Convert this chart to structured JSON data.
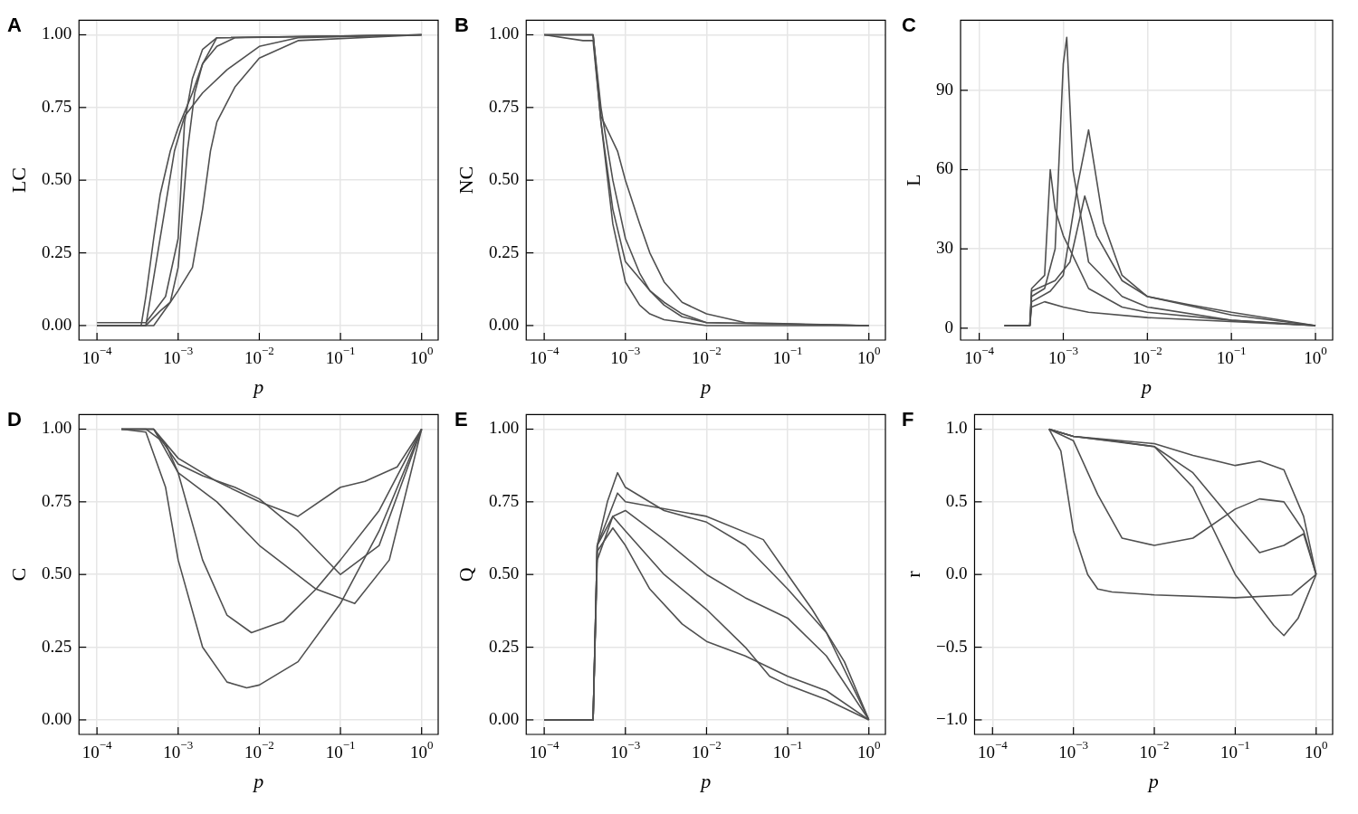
{
  "chart_data": [
    {
      "type": "line",
      "annotations": [
        "A"
      ],
      "xlabel": "p",
      "ylabel": "LC",
      "log": "x",
      "grid": true,
      "marker": "none",
      "xlim": [
        6e-05,
        1.6
      ],
      "xticks": [
        {
          "value": 0.0001,
          "label": "10$^{−4}$"
        },
        {
          "value": 0.001,
          "label": "10$^{−3}$"
        },
        {
          "value": 0.01,
          "label": "10$^{−2}$"
        },
        {
          "value": 0.1,
          "label": "10$^{−1}$"
        },
        {
          "value": 1,
          "label": "10$^{0}$"
        }
      ],
      "ylim": [
        -0.05,
        1.05
      ],
      "yticks": [
        {
          "value": 0,
          "label": "0.00"
        },
        {
          "value": 0.25,
          "label": "0.25"
        },
        {
          "value": 0.5,
          "label": "0.50"
        },
        {
          "value": 0.75,
          "label": "0.75"
        },
        {
          "value": 1,
          "label": "1.00"
        }
      ],
      "series": [
        {
          "color": "#505050",
          "x": [
            0.0001,
            0.00035,
            0.0004,
            0.0005,
            0.0006,
            0.0008,
            0.001,
            0.0015,
            0.002,
            0.003,
            1
          ],
          "values": [
            0,
            0,
            0.1,
            0.3,
            0.45,
            0.6,
            0.68,
            0.8,
            0.9,
            0.99,
            1
          ]
        },
        {
          "color": "#505050",
          "x": [
            0.0001,
            0.0004,
            0.0006,
            0.0008,
            0.001,
            0.0013,
            0.0016,
            0.002,
            0.003,
            0.005,
            1
          ],
          "values": [
            0,
            0,
            0.05,
            0.08,
            0.2,
            0.6,
            0.8,
            0.9,
            0.96,
            0.99,
            1
          ]
        },
        {
          "color": "#505050",
          "x": [
            0.0001,
            0.0005,
            0.0008,
            0.001,
            0.0015,
            0.002,
            0.0025,
            0.003,
            0.005,
            0.01,
            0.03,
            1
          ],
          "values": [
            0,
            0,
            0.08,
            0.12,
            0.2,
            0.4,
            0.6,
            0.7,
            0.82,
            0.92,
            0.98,
            1
          ]
        },
        {
          "color": "#505050",
          "x": [
            0.0001,
            0.0004,
            0.0007,
            0.001,
            0.0012,
            0.0015,
            0.002,
            0.003,
            1
          ],
          "values": [
            0.01,
            0.01,
            0.1,
            0.3,
            0.7,
            0.85,
            0.95,
            0.99,
            1
          ]
        },
        {
          "color": "#505050",
          "x": [
            0.0001,
            0.0004,
            0.0006,
            0.0009,
            0.0012,
            0.002,
            0.004,
            0.01,
            0.03,
            1
          ],
          "values": [
            0,
            0,
            0.3,
            0.6,
            0.72,
            0.8,
            0.88,
            0.96,
            0.99,
            1
          ]
        }
      ]
    },
    {
      "type": "line",
      "annotations": [
        "B"
      ],
      "xlabel": "p",
      "ylabel": "NC",
      "log": "x",
      "grid": true,
      "marker": "none",
      "xlim": [
        6e-05,
        1.6
      ],
      "xticks": [
        {
          "value": 0.0001,
          "label": "10$^{−4}$"
        },
        {
          "value": 0.001,
          "label": "10$^{−3}$"
        },
        {
          "value": 0.01,
          "label": "10$^{−2}$"
        },
        {
          "value": 0.1,
          "label": "10$^{−1}$"
        },
        {
          "value": 1,
          "label": "10$^{0}$"
        }
      ],
      "ylim": [
        -0.05,
        1.05
      ],
      "yticks": [
        {
          "value": 0,
          "label": "0.00"
        },
        {
          "value": 0.25,
          "label": "0.25"
        },
        {
          "value": 0.5,
          "label": "0.50"
        },
        {
          "value": 0.75,
          "label": "0.75"
        },
        {
          "value": 1,
          "label": "1.00"
        }
      ],
      "series": [
        {
          "color": "#505050",
          "x": [
            0.0001,
            0.0004,
            0.0005,
            0.0007,
            0.001,
            0.0015,
            0.002,
            0.003,
            0.005,
            0.01,
            1
          ],
          "values": [
            1,
            1,
            0.75,
            0.5,
            0.3,
            0.18,
            0.12,
            0.07,
            0.03,
            0.01,
            0
          ]
        },
        {
          "color": "#505050",
          "x": [
            0.0001,
            0.0003,
            0.0004,
            0.0005,
            0.0007,
            0.001,
            0.0015,
            0.002,
            0.003,
            0.01,
            1
          ],
          "values": [
            1,
            0.98,
            0.98,
            0.7,
            0.35,
            0.15,
            0.07,
            0.04,
            0.02,
            0,
            0
          ]
        },
        {
          "color": "#505050",
          "x": [
            0.0001,
            0.0004,
            0.0005,
            0.0008,
            0.001,
            0.0015,
            0.002,
            0.003,
            0.005,
            0.01,
            0.03,
            1
          ],
          "values": [
            1,
            1,
            0.72,
            0.6,
            0.5,
            0.35,
            0.25,
            0.15,
            0.08,
            0.04,
            0.01,
            0
          ]
        },
        {
          "color": "#505050",
          "x": [
            0.0001,
            0.0004,
            0.0005,
            0.0007,
            0.001,
            0.002,
            0.003,
            0.005,
            0.01,
            1
          ],
          "values": [
            1,
            1,
            0.7,
            0.4,
            0.22,
            0.12,
            0.08,
            0.04,
            0.01,
            0
          ]
        }
      ]
    },
    {
      "type": "line",
      "annotations": [
        "C"
      ],
      "xlabel": "p",
      "ylabel": "L",
      "log": "x",
      "grid": true,
      "marker": "none",
      "xlim": [
        6e-05,
        1.6
      ],
      "xticks": [
        {
          "value": 0.0001,
          "label": "10$^{−4}$"
        },
        {
          "value": 0.001,
          "label": "10$^{−3}$"
        },
        {
          "value": 0.01,
          "label": "10$^{−2}$"
        },
        {
          "value": 0.1,
          "label": "10$^{−1}$"
        },
        {
          "value": 1,
          "label": "10$^{0}$"
        }
      ],
      "ylim": [
        -4.5,
        116.5
      ],
      "yticks": [
        0,
        30,
        60,
        90
      ],
      "series": [
        {
          "color": "#505050",
          "x": [
            0.0002,
            0.0004,
            0.00042,
            0.0006,
            0.0008,
            0.001,
            0.0011,
            0.0013,
            0.002,
            0.005,
            0.01,
            0.1,
            1
          ],
          "values": [
            1,
            1,
            12,
            15,
            30,
            100,
            110,
            60,
            25,
            12,
            8,
            3,
            1
          ]
        },
        {
          "color": "#505050",
          "x": [
            0.0002,
            0.0004,
            0.00042,
            0.0007,
            0.001,
            0.0015,
            0.002,
            0.003,
            0.005,
            0.01,
            0.1,
            1
          ],
          "values": [
            1,
            1,
            10,
            14,
            20,
            55,
            75,
            40,
            20,
            12,
            5,
            1
          ]
        },
        {
          "color": "#505050",
          "x": [
            0.0002,
            0.0004,
            0.00042,
            0.0006,
            0.0007,
            0.0008,
            0.001,
            0.002,
            0.005,
            0.01,
            0.1,
            1
          ],
          "values": [
            1,
            1,
            15,
            20,
            60,
            45,
            35,
            15,
            8,
            6,
            3,
            1
          ]
        },
        {
          "color": "#505050",
          "x": [
            0.0002,
            0.0004,
            0.00042,
            0.0006,
            0.001,
            0.002,
            0.01,
            1
          ],
          "values": [
            1,
            1,
            8,
            10,
            8,
            6,
            4,
            1
          ]
        },
        {
          "color": "#505050",
          "x": [
            0.0002,
            0.0004,
            0.00042,
            0.0008,
            0.0012,
            0.0018,
            0.0025,
            0.005,
            0.01,
            0.03,
            0.1,
            1
          ],
          "values": [
            1,
            1,
            14,
            18,
            25,
            50,
            35,
            18,
            12,
            9,
            6,
            1
          ]
        }
      ]
    },
    {
      "type": "line",
      "annotations": [
        "D"
      ],
      "xlabel": "p",
      "ylabel": "C",
      "log": "x",
      "grid": true,
      "marker": "none",
      "xlim": [
        6e-05,
        1.6
      ],
      "xticks": [
        {
          "value": 0.0001,
          "label": "10$^{−4}$"
        },
        {
          "value": 0.001,
          "label": "10$^{−3}$"
        },
        {
          "value": 0.01,
          "label": "10$^{−2}$"
        },
        {
          "value": 0.1,
          "label": "10$^{−1}$"
        },
        {
          "value": 1,
          "label": "10$^{0}$"
        }
      ],
      "ylim": [
        -0.05,
        1.05
      ],
      "yticks": [
        {
          "value": 0,
          "label": "0.00"
        },
        {
          "value": 0.25,
          "label": "0.25"
        },
        {
          "value": 0.5,
          "label": "0.50"
        },
        {
          "value": 0.75,
          "label": "0.75"
        },
        {
          "value": 1,
          "label": "1.00"
        }
      ],
      "series": [
        {
          "color": "#505050",
          "x": [
            0.0002,
            0.0004,
            0.0007,
            0.001,
            0.002,
            0.004,
            0.007,
            0.01,
            0.03,
            0.1,
            0.3,
            1
          ],
          "values": [
            1,
            0.99,
            0.8,
            0.55,
            0.25,
            0.13,
            0.11,
            0.12,
            0.2,
            0.4,
            0.65,
            1
          ]
        },
        {
          "color": "#505050",
          "x": [
            0.0002,
            0.0004,
            0.0007,
            0.001,
            0.002,
            0.004,
            0.008,
            0.02,
            0.05,
            0.1,
            0.3,
            1
          ],
          "values": [
            1,
            1,
            0.95,
            0.85,
            0.55,
            0.36,
            0.3,
            0.34,
            0.45,
            0.55,
            0.72,
            1
          ]
        },
        {
          "color": "#505050",
          "x": [
            0.0002,
            0.0005,
            0.001,
            0.002,
            0.005,
            0.01,
            0.03,
            0.1,
            0.3,
            1
          ],
          "values": [
            1,
            1,
            0.88,
            0.84,
            0.8,
            0.76,
            0.65,
            0.5,
            0.6,
            1
          ]
        },
        {
          "color": "#505050",
          "x": [
            0.0002,
            0.0005,
            0.001,
            0.003,
            0.01,
            0.03,
            0.1,
            0.2,
            0.5,
            1
          ],
          "values": [
            1,
            1,
            0.9,
            0.82,
            0.75,
            0.7,
            0.8,
            0.82,
            0.87,
            1
          ]
        },
        {
          "color": "#505050",
          "x": [
            0.0002,
            0.0005,
            0.001,
            0.003,
            0.01,
            0.05,
            0.15,
            0.4,
            1
          ],
          "values": [
            1,
            1,
            0.85,
            0.75,
            0.6,
            0.45,
            0.4,
            0.55,
            1
          ]
        }
      ]
    },
    {
      "type": "line",
      "annotations": [
        "E"
      ],
      "xlabel": "p",
      "ylabel": "Q",
      "log": "x",
      "grid": true,
      "marker": "none",
      "xlim": [
        6e-05,
        1.6
      ],
      "xticks": [
        {
          "value": 0.0001,
          "label": "10$^{−4}$"
        },
        {
          "value": 0.001,
          "label": "10$^{−3}$"
        },
        {
          "value": 0.01,
          "label": "10$^{−2}$"
        },
        {
          "value": 0.1,
          "label": "10$^{−1}$"
        },
        {
          "value": 1,
          "label": "10$^{0}$"
        }
      ],
      "ylim": [
        -0.05,
        1.05
      ],
      "yticks": [
        {
          "value": 0,
          "label": "0.00"
        },
        {
          "value": 0.25,
          "label": "0.25"
        },
        {
          "value": 0.5,
          "label": "0.50"
        },
        {
          "value": 0.75,
          "label": "0.75"
        },
        {
          "value": 1,
          "label": "1.00"
        }
      ],
      "series": [
        {
          "color": "#505050",
          "x": [
            0.0001,
            0.0004,
            0.00045,
            0.0006,
            0.0008,
            0.001,
            0.003,
            0.01,
            0.03,
            0.1,
            0.3,
            1
          ],
          "values": [
            0,
            0,
            0.6,
            0.75,
            0.85,
            0.8,
            0.72,
            0.68,
            0.6,
            0.45,
            0.3,
            0
          ]
        },
        {
          "color": "#505050",
          "x": [
            0.0001,
            0.0004,
            0.00045,
            0.0007,
            0.001,
            0.003,
            0.01,
            0.03,
            0.1,
            0.3,
            1
          ],
          "values": [
            0,
            0,
            0.55,
            0.7,
            0.72,
            0.62,
            0.5,
            0.42,
            0.35,
            0.22,
            0
          ]
        },
        {
          "color": "#505050",
          "x": [
            0.0001,
            0.0004,
            0.00045,
            0.0007,
            0.001,
            0.002,
            0.005,
            0.01,
            0.03,
            0.1,
            0.3,
            1
          ],
          "values": [
            0,
            0,
            0.58,
            0.66,
            0.6,
            0.45,
            0.33,
            0.27,
            0.22,
            0.15,
            0.1,
            0
          ]
        },
        {
          "color": "#505050",
          "x": [
            0.0001,
            0.0004,
            0.00045,
            0.0007,
            0.001,
            0.003,
            0.01,
            0.03,
            0.06,
            0.1,
            0.3,
            1
          ],
          "values": [
            0,
            0,
            0.6,
            0.7,
            0.65,
            0.5,
            0.38,
            0.25,
            0.15,
            0.12,
            0.07,
            0
          ]
        },
        {
          "color": "#505050",
          "x": [
            0.0001,
            0.0004,
            0.00045,
            0.0008,
            0.001,
            0.01,
            0.05,
            0.1,
            0.2,
            0.5,
            1
          ],
          "values": [
            0,
            0,
            0.6,
            0.78,
            0.75,
            0.7,
            0.62,
            0.5,
            0.38,
            0.2,
            0
          ]
        }
      ]
    },
    {
      "type": "line",
      "annotations": [
        "F"
      ],
      "xlabel": "p",
      "ylabel": "r",
      "log": "x",
      "grid": true,
      "marker": "none",
      "xlim": [
        6e-05,
        1.6
      ],
      "xticks": [
        {
          "value": 0.0001,
          "label": "10$^{−4}$"
        },
        {
          "value": 0.001,
          "label": "10$^{−3}$"
        },
        {
          "value": 0.01,
          "label": "10$^{−2}$"
        },
        {
          "value": 0.1,
          "label": "10$^{−1}$"
        },
        {
          "value": 1,
          "label": "10$^{0}$"
        }
      ],
      "ylim": [
        -1.1,
        1.1
      ],
      "yticks": [
        {
          "value": -1,
          "label": "−1.0"
        },
        {
          "value": -0.5,
          "label": "−0.5"
        },
        {
          "value": 0,
          "label": "0.0"
        },
        {
          "value": 0.5,
          "label": "0.5"
        },
        {
          "value": 1,
          "label": "1.0"
        }
      ],
      "series": [
        {
          "color": "#505050",
          "x": [
            0.0005,
            0.0007,
            0.001,
            0.0015,
            0.002,
            0.003,
            0.01,
            0.1,
            0.5,
            1
          ],
          "values": [
            1,
            0.85,
            0.3,
            0,
            -0.1,
            -0.12,
            -0.14,
            -0.16,
            -0.14,
            0
          ]
        },
        {
          "color": "#505050",
          "x": [
            0.0005,
            0.001,
            0.002,
            0.004,
            0.01,
            0.03,
            0.1,
            0.2,
            0.4,
            0.7,
            1
          ],
          "values": [
            1,
            0.92,
            0.55,
            0.25,
            0.2,
            0.25,
            0.45,
            0.52,
            0.5,
            0.3,
            0
          ]
        },
        {
          "color": "#505050",
          "x": [
            0.0005,
            0.001,
            0.003,
            0.01,
            0.03,
            0.1,
            0.2,
            0.4,
            0.7,
            1
          ],
          "values": [
            1,
            0.95,
            0.92,
            0.88,
            0.7,
            0.35,
            0.15,
            0.2,
            0.28,
            0
          ]
        },
        {
          "color": "#505050",
          "x": [
            0.0005,
            0.001,
            0.01,
            0.03,
            0.1,
            0.2,
            0.4,
            0.7,
            1
          ],
          "values": [
            1,
            0.95,
            0.9,
            0.82,
            0.75,
            0.78,
            0.72,
            0.4,
            0
          ]
        },
        {
          "color": "#505050",
          "x": [
            0.0005,
            0.001,
            0.01,
            0.03,
            0.1,
            0.3,
            0.4,
            0.6,
            1
          ],
          "values": [
            1,
            0.95,
            0.88,
            0.6,
            0,
            -0.35,
            -0.42,
            -0.3,
            0
          ]
        }
      ]
    }
  ]
}
